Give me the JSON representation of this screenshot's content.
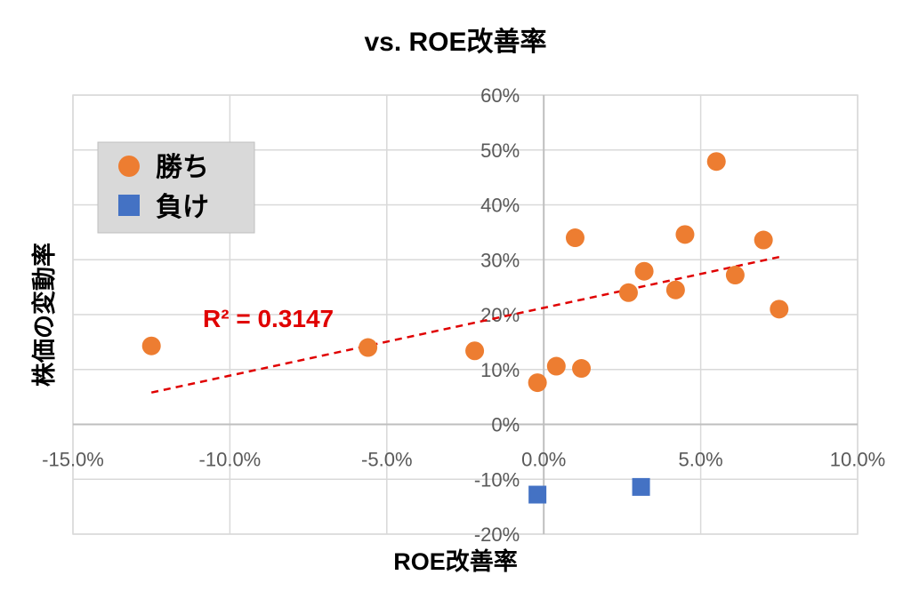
{
  "chart_data": {
    "type": "scatter",
    "title": "vs. ROE改善率",
    "xlabel": "ROE改善率",
    "ylabel": "株価の変動率",
    "xlim": [
      -0.15,
      0.1
    ],
    "ylim": [
      -0.2,
      0.6
    ],
    "x_ticks": [
      -0.15,
      -0.1,
      -0.05,
      0.0,
      0.05,
      0.1
    ],
    "x_tick_labels": [
      "-15.0%",
      "-10.0%",
      "-5.0%",
      "0.0%",
      "5.0%",
      "10.0%"
    ],
    "y_ticks": [
      -0.2,
      -0.1,
      0.0,
      0.1,
      0.2,
      0.3,
      0.4,
      0.5,
      0.6
    ],
    "y_tick_labels": [
      "-20%",
      "-10%",
      "0%",
      "10%",
      "20%",
      "30%",
      "40%",
      "50%",
      "60%"
    ],
    "grid": true,
    "legend_position": "top-left",
    "series": [
      {
        "name": "勝ち",
        "marker": "circle",
        "color": "#ED7D31",
        "points": [
          {
            "x": -0.125,
            "y": 0.143
          },
          {
            "x": -0.056,
            "y": 0.14
          },
          {
            "x": -0.022,
            "y": 0.134
          },
          {
            "x": -0.002,
            "y": 0.076
          },
          {
            "x": 0.004,
            "y": 0.106
          },
          {
            "x": 0.01,
            "y": 0.34
          },
          {
            "x": 0.012,
            "y": 0.102
          },
          {
            "x": 0.027,
            "y": 0.24
          },
          {
            "x": 0.032,
            "y": 0.279
          },
          {
            "x": 0.042,
            "y": 0.245
          },
          {
            "x": 0.045,
            "y": 0.346
          },
          {
            "x": 0.055,
            "y": 0.479
          },
          {
            "x": 0.061,
            "y": 0.272
          },
          {
            "x": 0.07,
            "y": 0.336
          },
          {
            "x": 0.075,
            "y": 0.21
          }
        ]
      },
      {
        "name": "負け",
        "marker": "square",
        "color": "#4472C4",
        "points": [
          {
            "x": -0.002,
            "y": -0.128
          },
          {
            "x": 0.031,
            "y": -0.114
          }
        ]
      }
    ],
    "trendline": {
      "series": "勝ち",
      "style": "dashed",
      "color": "#E00000",
      "x_range": [
        -0.125,
        0.075
      ],
      "y_range": [
        0.058,
        0.305
      ],
      "label": "R² = 0.3147"
    }
  }
}
